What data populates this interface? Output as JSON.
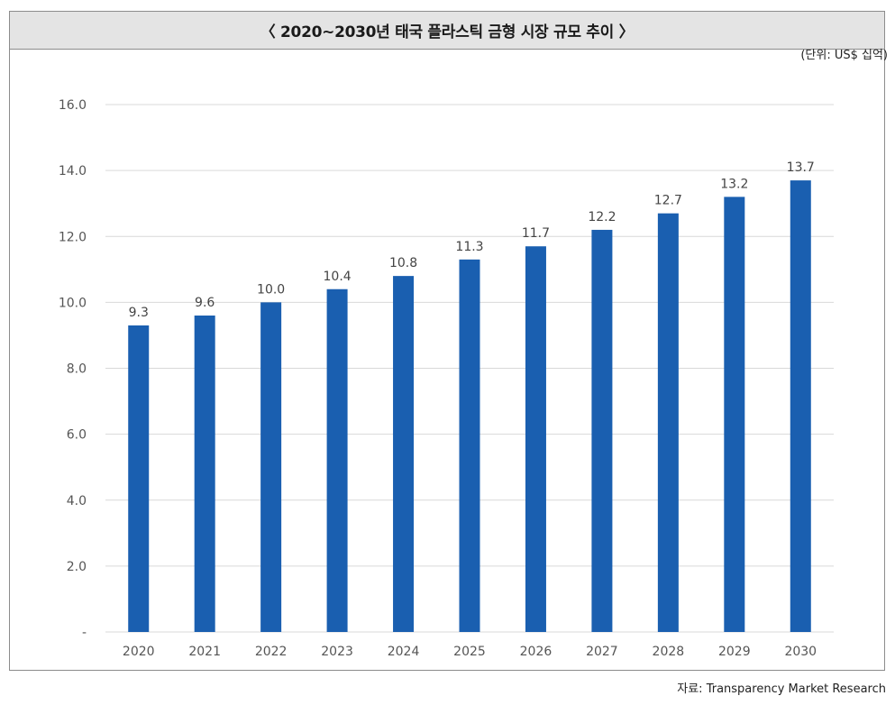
{
  "header": {
    "title": "〈 2020~2030년 태국 플라스틱 금형 시장 규모 추이 〉"
  },
  "unit_note": "(단위: US$ 십억)",
  "source_note": "자료: Transparency Market Research",
  "colors": {
    "bar": "#1a5fb0",
    "grid": "#d9d9d9",
    "title_bg": "#e4e4e4"
  },
  "chart_data": {
    "type": "bar",
    "title": "〈 2020~2030년 태국 플라스틱 금형 시장 규모 추이 〉",
    "categories": [
      "2020",
      "2021",
      "2022",
      "2023",
      "2024",
      "2025",
      "2026",
      "2027",
      "2028",
      "2029",
      "2030"
    ],
    "values": [
      9.3,
      9.6,
      10.0,
      10.4,
      10.8,
      11.3,
      11.7,
      12.2,
      12.7,
      13.2,
      13.7
    ],
    "data_labels": [
      "9.3",
      "9.6",
      "10.0",
      "10.4",
      "10.8",
      "11.3",
      "11.7",
      "12.2",
      "12.7",
      "13.2",
      "13.7"
    ],
    "ylim": [
      0,
      16
    ],
    "yticks": [
      0,
      2,
      4,
      6,
      8,
      10,
      12,
      14,
      16
    ],
    "ytick_labels": [
      "-",
      "2.0",
      "4.0",
      "6.0",
      "8.0",
      "10.0",
      "12.0",
      "14.0",
      "16.0"
    ],
    "xlabel": "",
    "ylabel": "",
    "grid": true,
    "legend": "none"
  }
}
